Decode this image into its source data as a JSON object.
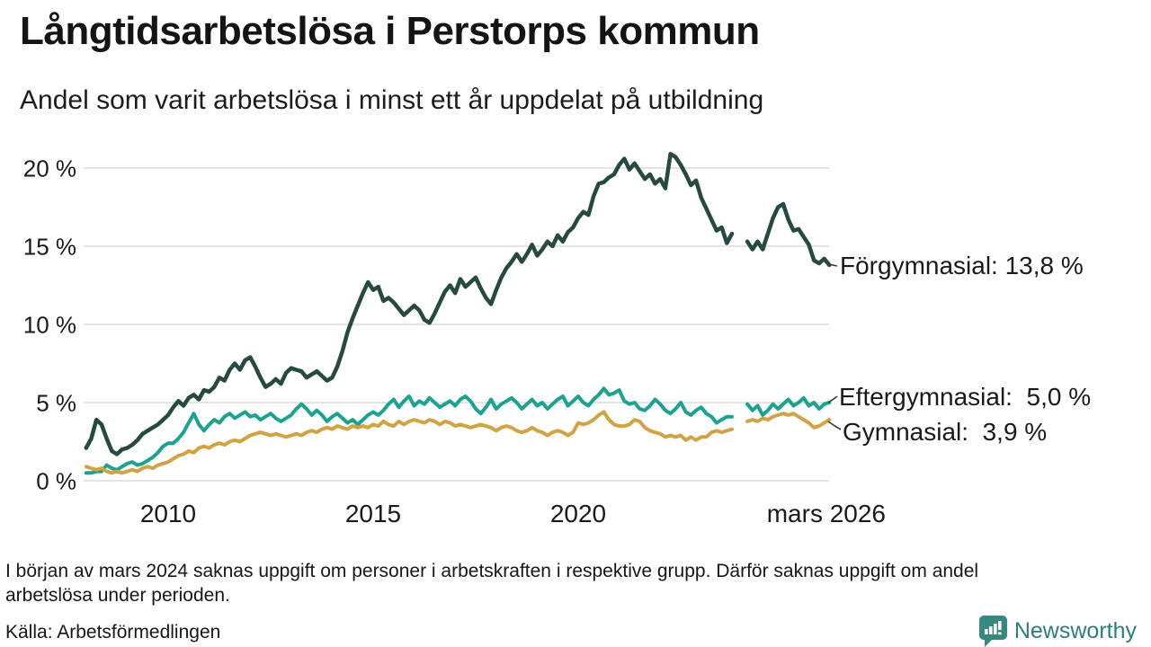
{
  "title": "Långtidsarbetslösa i Perstorps kommun",
  "subtitle": "Andel som varit arbetslösa i minst ett år uppdelat på utbildning",
  "footnote": "I början av mars 2024 saknas uppgift om personer i arbetskraften i respektive grupp. Därför saknas uppgift om andel arbetslösa under perioden.",
  "source": "Källa: Arbetsförmedlingen",
  "brand": {
    "name": "Newsworthy",
    "icon": "speech-bubble-bar-chart-icon",
    "color": "#2b7f76",
    "icon_color": "#35897f"
  },
  "chart_data": {
    "type": "line",
    "title": "Långtidsarbetslösa i Perstorps kommun",
    "subtitle": "Andel som varit arbetslösa i minst ett år uppdelat på utbildning",
    "unit": "%",
    "grid": true,
    "grid_color": "#e4e4e4",
    "legend_position": "end-of-line-labels",
    "x_axis": {
      "range": [
        2008.0,
        2026.2
      ],
      "ticks": [
        {
          "year": 2010,
          "label": "2010"
        },
        {
          "year": 2015,
          "label": "2015"
        },
        {
          "year": 2020,
          "label": "2020"
        },
        {
          "year": 2026.05,
          "label": "mars 2026"
        }
      ]
    },
    "y_axis": {
      "range": [
        0,
        21
      ],
      "ticks": [
        {
          "value": 0,
          "label": "0 %"
        },
        {
          "value": 5,
          "label": "5 %"
        },
        {
          "value": 10,
          "label": "10 %"
        },
        {
          "value": 15,
          "label": "15 %"
        },
        {
          "value": 20,
          "label": "20 %"
        }
      ]
    },
    "data_gap": {
      "from": 2023.8,
      "to": 2024.1,
      "reason": "saknas uppgift mars 2024"
    },
    "x_start": 2008.0,
    "x_step": 0.125,
    "series": [
      {
        "name": "Förgymnasial",
        "end_label": "Förgymnasial: 13,8 %",
        "last_value": "13,8 %",
        "color": "#264a41",
        "values": [
          2.1,
          2.7,
          3.9,
          3.6,
          2.7,
          1.9,
          1.7,
          2.0,
          2.1,
          2.3,
          2.6,
          3.0,
          3.2,
          3.4,
          3.6,
          3.9,
          4.2,
          4.7,
          5.1,
          4.8,
          5.3,
          5.5,
          5.2,
          5.8,
          5.7,
          6.0,
          6.6,
          6.4,
          7.1,
          7.5,
          7.1,
          7.7,
          7.9,
          7.3,
          6.6,
          6.0,
          6.2,
          6.5,
          6.2,
          6.9,
          7.2,
          7.1,
          7.0,
          6.6,
          6.8,
          7.0,
          6.7,
          6.4,
          6.6,
          7.3,
          8.3,
          9.5,
          10.4,
          11.2,
          12.0,
          12.7,
          12.2,
          12.4,
          11.5,
          11.7,
          11.4,
          11.0,
          10.6,
          10.9,
          11.2,
          10.9,
          10.3,
          10.1,
          10.7,
          11.4,
          12.1,
          12.5,
          12.0,
          12.9,
          12.4,
          12.7,
          13.0,
          12.3,
          11.7,
          11.3,
          12.2,
          13.0,
          13.6,
          14.0,
          14.5,
          14.0,
          14.5,
          15.1,
          14.4,
          14.8,
          15.3,
          15.0,
          15.7,
          15.3,
          15.9,
          16.2,
          16.8,
          17.2,
          17.0,
          18.2,
          19.0,
          19.1,
          19.4,
          19.6,
          20.2,
          20.6,
          19.9,
          20.3,
          19.8,
          19.3,
          19.6,
          19.0,
          19.3,
          18.7,
          20.9,
          20.7,
          20.2,
          19.6,
          18.9,
          19.2,
          18.1,
          17.4,
          16.7,
          16.0,
          16.2,
          15.2,
          15.8,
          null,
          null,
          15.3,
          14.8,
          15.3,
          14.8,
          15.8,
          16.8,
          17.5,
          17.7,
          16.7,
          16.0,
          16.1,
          15.6,
          15.1,
          14.1,
          13.9,
          14.2,
          13.8
        ]
      },
      {
        "name": "Eftergymnasial",
        "end_label": "Eftergymnasial:  5,0 %",
        "last_value": "5,0 %",
        "color": "#1ba390",
        "values": [
          0.5,
          0.5,
          0.6,
          0.6,
          1.0,
          0.8,
          0.7,
          0.9,
          1.1,
          1.2,
          1.0,
          1.1,
          1.3,
          1.5,
          1.8,
          2.2,
          2.4,
          2.4,
          2.7,
          3.1,
          3.7,
          4.3,
          3.6,
          3.2,
          3.6,
          3.9,
          3.7,
          4.1,
          4.3,
          4.0,
          4.2,
          4.4,
          4.1,
          4.2,
          3.9,
          4.1,
          4.3,
          4.0,
          3.8,
          4.0,
          4.2,
          4.6,
          4.9,
          4.6,
          4.2,
          4.5,
          4.2,
          3.8,
          4.1,
          4.3,
          4.0,
          3.7,
          3.9,
          3.6,
          3.9,
          4.2,
          4.4,
          4.2,
          4.5,
          4.9,
          5.2,
          4.7,
          5.1,
          5.4,
          4.8,
          5.1,
          4.9,
          5.3,
          5.0,
          4.7,
          4.9,
          5.1,
          4.8,
          5.2,
          5.4,
          5.1,
          4.6,
          4.3,
          4.7,
          5.2,
          4.6,
          4.9,
          5.1,
          5.3,
          5.0,
          4.6,
          4.9,
          5.2,
          4.8,
          5.0,
          4.6,
          4.9,
          5.2,
          5.4,
          4.8,
          5.1,
          5.4,
          5.0,
          4.8,
          5.2,
          5.5,
          5.9,
          5.5,
          5.6,
          5.8,
          5.1,
          4.9,
          5.0,
          4.6,
          4.5,
          4.8,
          5.2,
          4.9,
          4.5,
          4.3,
          4.6,
          5.0,
          4.4,
          4.2,
          4.5,
          4.7,
          4.3,
          4.1,
          3.7,
          3.9,
          4.1,
          4.1,
          null,
          null,
          4.9,
          4.5,
          4.8,
          4.2,
          4.5,
          4.9,
          4.6,
          4.9,
          5.2,
          4.8,
          5.0,
          5.3,
          4.8,
          5.0,
          4.6,
          4.9,
          5.0
        ]
      },
      {
        "name": "Gymnasial",
        "end_label": "Gymnasial:  3,9 %",
        "last_value": "3,9 %",
        "color": "#d2a342",
        "values": [
          0.9,
          0.8,
          0.7,
          0.8,
          0.6,
          0.5,
          0.6,
          0.5,
          0.6,
          0.7,
          0.6,
          0.8,
          0.9,
          0.8,
          1.0,
          1.1,
          1.2,
          1.4,
          1.6,
          1.7,
          1.9,
          1.8,
          2.1,
          2.2,
          2.1,
          2.3,
          2.4,
          2.3,
          2.5,
          2.6,
          2.5,
          2.7,
          2.9,
          3.0,
          3.1,
          3.0,
          2.9,
          3.0,
          2.9,
          2.8,
          2.9,
          3.0,
          2.9,
          3.1,
          3.2,
          3.1,
          3.3,
          3.4,
          3.3,
          3.5,
          3.4,
          3.3,
          3.5,
          3.4,
          3.5,
          3.4,
          3.6,
          3.5,
          3.8,
          3.6,
          3.5,
          3.8,
          3.6,
          3.8,
          3.9,
          3.8,
          3.7,
          3.9,
          3.8,
          3.6,
          3.8,
          3.7,
          3.5,
          3.6,
          3.5,
          3.4,
          3.5,
          3.6,
          3.5,
          3.4,
          3.2,
          3.4,
          3.5,
          3.4,
          3.2,
          3.1,
          3.2,
          3.4,
          3.2,
          3.1,
          2.9,
          3.1,
          3.2,
          3.1,
          2.9,
          3.1,
          3.7,
          3.6,
          3.7,
          3.9,
          4.2,
          4.4,
          3.9,
          3.6,
          3.5,
          3.5,
          3.6,
          3.9,
          3.8,
          3.4,
          3.2,
          3.1,
          3.0,
          2.8,
          2.9,
          2.8,
          2.9,
          2.6,
          2.8,
          2.6,
          2.8,
          2.8,
          3.1,
          3.2,
          3.1,
          3.2,
          3.3,
          null,
          null,
          3.8,
          3.9,
          3.8,
          4.0,
          3.9,
          4.1,
          4.2,
          4.3,
          4.2,
          4.3,
          4.1,
          3.9,
          3.7,
          3.4,
          3.5,
          3.7,
          3.9
        ]
      }
    ]
  }
}
